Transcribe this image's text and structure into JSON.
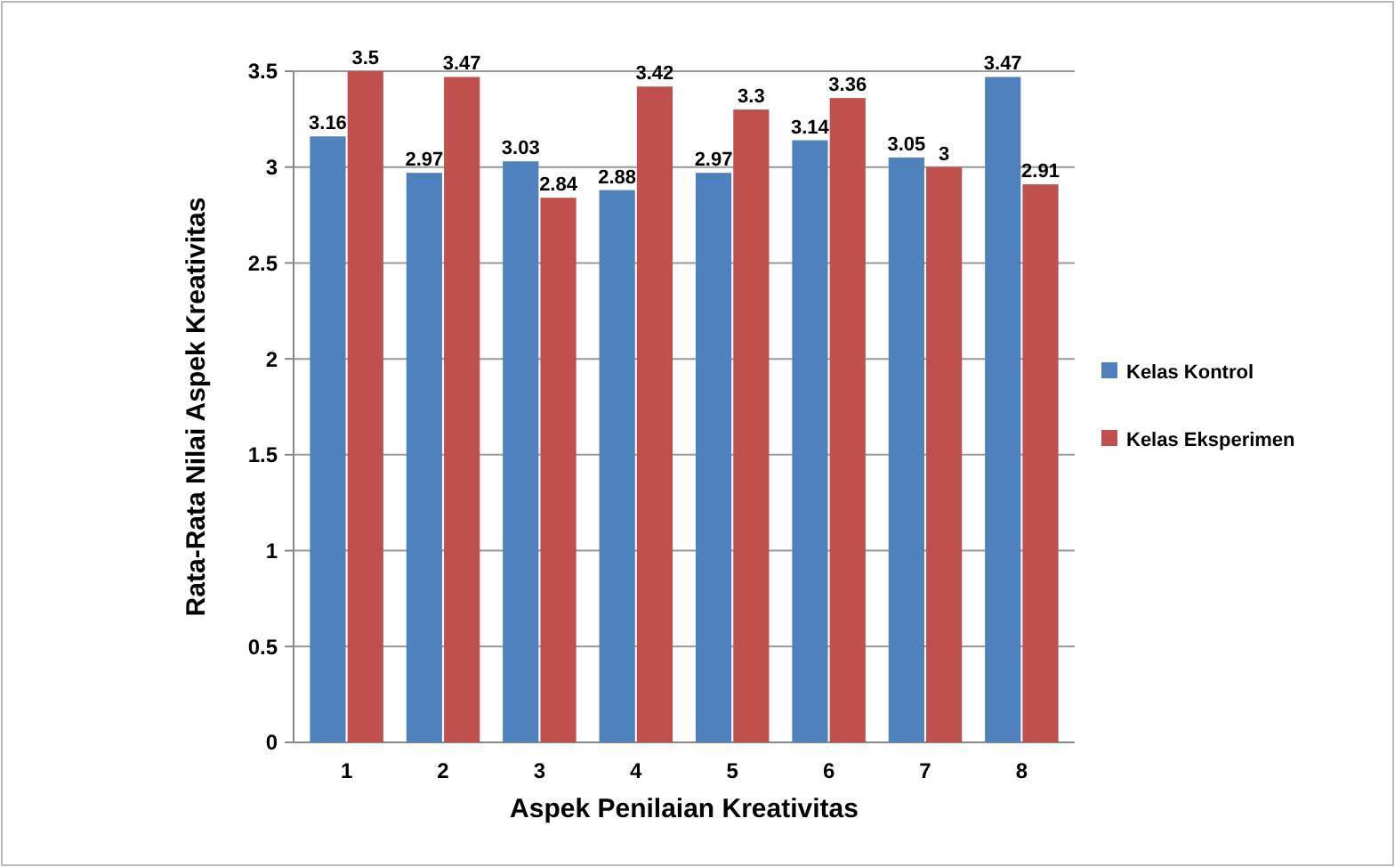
{
  "chart_data": {
    "type": "bar",
    "xlabel": "Aspek Penilaian Kreativitas",
    "ylabel": "Rata-Rata Nilai Aspek Kreativitas",
    "categories": [
      "1",
      "2",
      "3",
      "4",
      "5",
      "6",
      "7",
      "8"
    ],
    "series": [
      {
        "name": "Kelas Kontrol",
        "color": "#4f81bd",
        "values": [
          3.16,
          2.97,
          3.03,
          2.88,
          2.97,
          3.14,
          3.05,
          3.47
        ]
      },
      {
        "name": "Kelas Eksperimen",
        "color": "#c0504d",
        "values": [
          3.5,
          3.47,
          2.84,
          3.42,
          3.3,
          3.36,
          3,
          2.91
        ]
      }
    ],
    "ylim": [
      0,
      3.5
    ],
    "yticks": [
      0,
      0.5,
      1,
      1.5,
      2,
      2.5,
      3,
      3.5
    ],
    "grid": "y",
    "legend": "right",
    "data_labels": true
  }
}
